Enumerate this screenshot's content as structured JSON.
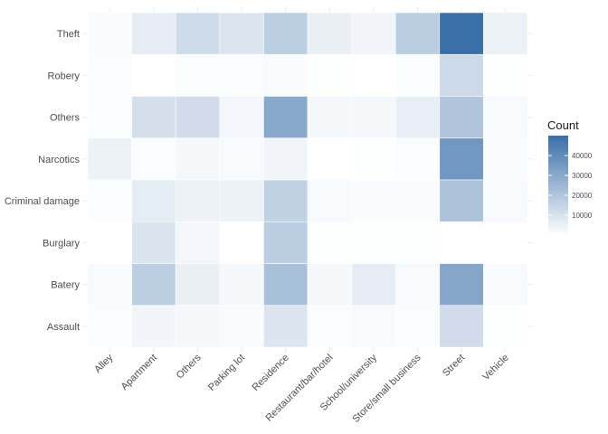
{
  "chart_data": {
    "type": "heatmap",
    "title": "",
    "xlabel": "",
    "ylabel": "",
    "x_categories": [
      "Alley",
      "Apartment",
      "Others",
      "Parking lot",
      "Residence",
      "Restaurant/bar/hotel",
      "School/university",
      "Store/small business",
      "Street",
      "Vehicle"
    ],
    "y_categories": [
      "Theft",
      "Robery",
      "Others",
      "Narcotics",
      "Criminal damage",
      "Burglary",
      "Batery",
      "Assault"
    ],
    "values": [
      [
        1500,
        6500,
        12500,
        9000,
        17000,
        5500,
        3500,
        17500,
        50000,
        5000
      ],
      [
        1000,
        0,
        1000,
        1000,
        1500,
        500,
        0,
        1000,
        13000,
        500
      ],
      [
        1000,
        11000,
        12000,
        3000,
        30000,
        2500,
        2500,
        6000,
        20000,
        2000
      ],
      [
        4500,
        1000,
        2500,
        2000,
        3500,
        0,
        500,
        1000,
        36000,
        1500
      ],
      [
        1000,
        7000,
        5000,
        4500,
        16000,
        2000,
        1500,
        1500,
        21000,
        2000
      ],
      [
        0,
        9500,
        3000,
        0,
        17500,
        500,
        500,
        500,
        0,
        0
      ],
      [
        2000,
        17000,
        5500,
        2500,
        22000,
        2500,
        6500,
        2000,
        31000,
        2000
      ],
      [
        1000,
        3500,
        2500,
        1500,
        9000,
        1000,
        2000,
        1000,
        12000,
        500
      ]
    ],
    "value_range": [
      0,
      50000
    ],
    "grid": true,
    "legend": {
      "title": "Count",
      "position": "right",
      "ticks": [
        10000,
        20000,
        30000,
        40000
      ],
      "tick_labels": [
        "10000",
        "20000",
        "30000",
        "40000"
      ]
    },
    "colors": {
      "low": "#ffffff",
      "high": "#3a6fa8",
      "grid": "#ebebeb"
    }
  }
}
